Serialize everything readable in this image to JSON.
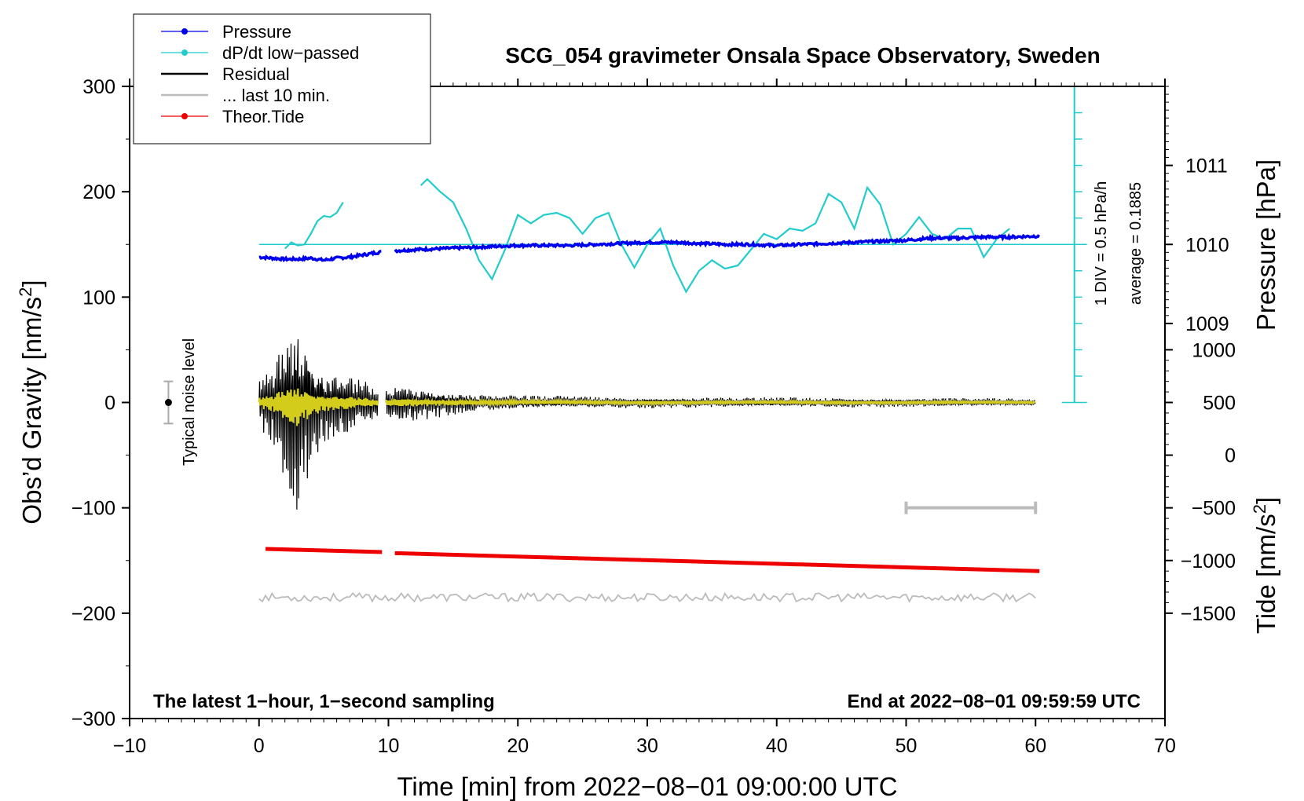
{
  "chart_data": {
    "type": "line",
    "title": "SCG_054 gravimeter Onsala Space Observatory, Sweden",
    "xlabel": "Time [min] from 2022−08−01 09:00:00 UTC",
    "ylabel_left": "Obs’d Gravity [nm/s",
    "ylabel_left_sup": "2",
    "ylabel_left_end": "]",
    "ylabel_right_pressure": "Pressure [hPa]",
    "ylabel_right_tide": "Tide [nm/s",
    "ylabel_right_tide_sup": "2",
    "ylabel_right_tide_end": "]",
    "xlim": [
      -10,
      70
    ],
    "ylim": [
      -300,
      300
    ],
    "x_ticks": [
      {
        "value": -10,
        "label": "−10"
      },
      {
        "value": 0,
        "label": "0"
      },
      {
        "value": 10,
        "label": "10"
      },
      {
        "value": 20,
        "label": "20"
      },
      {
        "value": 30,
        "label": "30"
      },
      {
        "value": 40,
        "label": "40"
      },
      {
        "value": 50,
        "label": "50"
      },
      {
        "value": 60,
        "label": "60"
      },
      {
        "value": 70,
        "label": "70"
      }
    ],
    "y_ticks": [
      {
        "value": 300,
        "label": "300"
      },
      {
        "value": 200,
        "label": "200"
      },
      {
        "value": 100,
        "label": "100"
      },
      {
        "value": 0,
        "label": "0"
      },
      {
        "value": -100,
        "label": "−100"
      },
      {
        "value": -200,
        "label": "−200"
      },
      {
        "value": -300,
        "label": "−300"
      }
    ],
    "pressure_axis": {
      "ticks": [
        {
          "value": 1011,
          "label": "1011",
          "y_grav": 225
        },
        {
          "value": 1010,
          "label": "1010",
          "y_grav": 150
        },
        {
          "value": 1009,
          "label": "1009",
          "y_grav": 75
        }
      ]
    },
    "tide_axis": {
      "ticks": [
        {
          "value": 1000,
          "label": "1000",
          "y_grav": 50
        },
        {
          "value": 500,
          "label": "500",
          "y_grav": 0
        },
        {
          "value": 0,
          "label": "0",
          "y_grav": -50
        },
        {
          "value": -500,
          "label": "−500",
          "y_grav": -100
        },
        {
          "value": -1000,
          "label": "−1000",
          "y_grav": -150
        },
        {
          "value": -1500,
          "label": "−1500",
          "y_grav": -200
        }
      ]
    },
    "legend": {
      "placement": "top-left",
      "entries": [
        {
          "label": "Pressure",
          "color": "#0000ee",
          "marker": true
        },
        {
          "label": "dP/dt low−passed",
          "color": "#22cccc",
          "marker": true
        },
        {
          "label": "Residual",
          "color": "#000000",
          "marker": false
        },
        {
          "label": "... last 10 min.",
          "color": "#bbbbbb",
          "marker": false
        },
        {
          "label": "Theor.Tide",
          "color": "#ee0000",
          "marker": true
        }
      ]
    },
    "series": [
      {
        "name": "Pressure",
        "color": "#0000ee",
        "units": "gravity-axis",
        "segments": [
          {
            "x": [
              0,
              1,
              2,
              3,
              4,
              5,
              6,
              7,
              8,
              9.5
            ],
            "y": [
              138,
              137,
              136,
              136,
              137,
              135,
              137,
              138,
              140,
              143
            ]
          },
          {
            "x": [
              10.5,
              12,
              14,
              16,
              18,
              20,
              22,
              24,
              26,
              28,
              30,
              32,
              34,
              36,
              38,
              40,
              42,
              44,
              46,
              48,
              50,
              52,
              54,
              56,
              58,
              60.3
            ],
            "y": [
              144,
              145,
              146,
              147,
              148,
              149,
              149,
              149,
              150,
              151,
              152,
              152,
              151,
              150,
              150,
              149,
              150,
              151,
              152,
              153,
              154,
              156,
              156,
              157,
              157,
              158
            ]
          }
        ]
      },
      {
        "name": "dP/dt low−passed",
        "color": "#22cccc",
        "units": "gravity-axis",
        "segments": [
          {
            "x": [
              2,
              2.5,
              3,
              3.5,
              4,
              4.5,
              5,
              5.5,
              6,
              6.5
            ],
            "y": [
              146,
              152,
              149,
              150,
              160,
              172,
              177,
              176,
              180,
              190
            ]
          },
          {
            "x": [
              12.5,
              13,
              14,
              15,
              16,
              17,
              18,
              19,
              20,
              21,
              22,
              23,
              24,
              25,
              26,
              27,
              28,
              29,
              30,
              31,
              32,
              33,
              34,
              35,
              36,
              37,
              38,
              39,
              40,
              41,
              42,
              43,
              44,
              45,
              46,
              47,
              48,
              49,
              50,
              51,
              52,
              53,
              54,
              55,
              56,
              57,
              58
            ],
            "y": [
              206,
              212,
              200,
              190,
              165,
              135,
              117,
              145,
              178,
              170,
              178,
              180,
              175,
              160,
              175,
              180,
              150,
              128,
              150,
              165,
              130,
              105,
              125,
              135,
              127,
              130,
              145,
              160,
              155,
              165,
              163,
              170,
              198,
              190,
              165,
              204,
              188,
              150,
              160,
              176,
              160,
              155,
              165,
              165,
              138,
              155,
              165
            ]
          }
        ]
      },
      {
        "name": "Residual",
        "color": "#000000",
        "units": "gravity-axis",
        "envelope": [
          [
            0,
            30
          ],
          [
            1,
            45
          ],
          [
            2,
            75
          ],
          [
            3,
            115
          ],
          [
            4,
            60
          ],
          [
            5,
            40
          ],
          [
            6,
            38
          ],
          [
            7,
            30
          ],
          [
            8,
            25
          ],
          [
            9,
            20
          ],
          [
            10.5,
            20
          ],
          [
            12,
            18
          ],
          [
            14,
            14
          ],
          [
            16,
            10
          ],
          [
            20,
            7
          ],
          [
            25,
            6
          ],
          [
            60,
            4
          ]
        ],
        "gap": [
          9.2,
          9.8
        ]
      },
      {
        "name": "Residual (smoothed)",
        "color": "#d4cc1a",
        "units": "gravity-axis"
      },
      {
        "name": "Theor.Tide",
        "color": "#ee0000",
        "units": "gravity-axis",
        "segments": [
          {
            "x": [
              0.5,
              9.5
            ],
            "y": [
              -139,
              -142
            ]
          },
          {
            "x": [
              10.5,
              60.3
            ],
            "y": [
              -143,
              -160
            ]
          }
        ]
      },
      {
        "name": "... last 10 min.",
        "color": "#bbbbbb",
        "units": "gravity-axis",
        "baseline": -185
      }
    ],
    "reference_line": {
      "label": "average = 0.1885",
      "y": 150,
      "color": "#22cccc"
    },
    "scale_bar": {
      "label": "1 DIV = 0.5 hPa/h",
      "x": 63,
      "y_from": 0,
      "y_to": 300,
      "divisions": 12,
      "color": "#22cccc"
    },
    "noise_level": {
      "label": "Typical noise level",
      "x": -7,
      "y": 0,
      "err": 20
    },
    "last10_bar": {
      "x_from": 50,
      "x_to": 60,
      "y": -100,
      "color": "#bbbbbb"
    },
    "annotations": {
      "left": "The latest 1−hour, 1−second sampling",
      "right": "End at 2022−08−01 09:59:59 UTC"
    }
  }
}
